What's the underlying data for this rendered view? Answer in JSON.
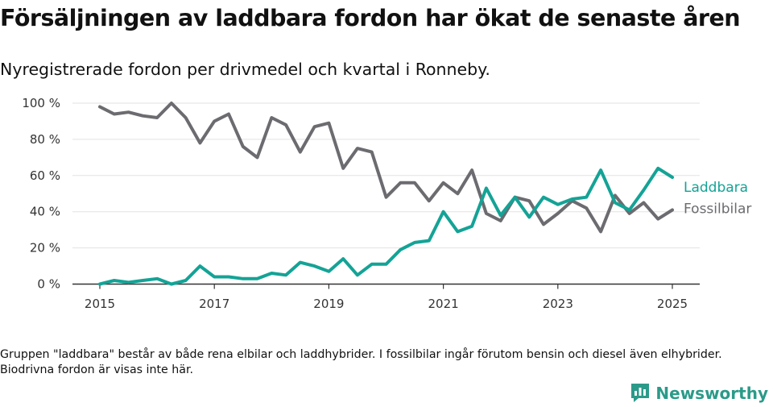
{
  "header": {
    "title": "Försäljningen av laddbara fordon har ökat de senaste åren",
    "subtitle": "Nyregistrerade fordon per drivmedel och kvartal i Ronneby."
  },
  "footnote": "Gruppen \"laddbara\" består av både rena elbilar och laddhybrider. I fossilbilar ingår förutom bensin och diesel även elhybrider. Biodrivna fordon är visas inte här.",
  "brand": {
    "name": "Newsworthy",
    "icon": "newsworthy-logo-icon",
    "color": "#2b9a89"
  },
  "chart_data": {
    "type": "line",
    "x_unit": "year",
    "x": [
      2015.0,
      2015.25,
      2015.5,
      2015.75,
      2016.0,
      2016.25,
      2016.5,
      2016.75,
      2017.0,
      2017.25,
      2017.5,
      2017.75,
      2018.0,
      2018.25,
      2018.5,
      2018.75,
      2019.0,
      2019.25,
      2019.5,
      2019.75,
      2020.0,
      2020.25,
      2020.5,
      2020.75,
      2021.0,
      2021.25,
      2021.5,
      2021.75,
      2022.0,
      2022.25,
      2022.5,
      2022.75,
      2023.0,
      2023.25,
      2023.5,
      2023.75,
      2024.0,
      2024.25,
      2024.5,
      2024.75,
      2025.0
    ],
    "series": [
      {
        "name": "Fossilbilar",
        "color": "#6b6b70",
        "values": [
          98,
          94,
          95,
          93,
          92,
          100,
          92,
          78,
          90,
          94,
          76,
          70,
          92,
          88,
          73,
          87,
          89,
          64,
          75,
          73,
          48,
          56,
          56,
          46,
          56,
          50,
          63,
          39,
          35,
          48,
          46,
          33,
          39,
          46,
          42,
          29,
          49,
          39,
          45,
          36,
          41
        ]
      },
      {
        "name": "Laddbara",
        "color": "#14a396",
        "values": [
          0,
          2,
          1,
          2,
          3,
          0,
          2,
          10,
          4,
          4,
          3,
          3,
          6,
          5,
          12,
          10,
          7,
          14,
          5,
          11,
          11,
          19,
          23,
          24,
          40,
          29,
          32,
          53,
          38,
          48,
          37,
          48,
          44,
          47,
          48,
          63,
          45,
          41,
          52,
          64,
          59
        ]
      }
    ],
    "y_ticks": [
      0,
      20,
      40,
      60,
      80,
      100
    ],
    "y_tick_labels": [
      "0 %",
      "20 %",
      "40 %",
      "60 %",
      "80 %",
      "100 %"
    ],
    "x_ticks": [
      2015,
      2017,
      2019,
      2021,
      2023,
      2025
    ],
    "x_tick_labels": [
      "2015",
      "2017",
      "2019",
      "2021",
      "2023",
      "2025"
    ],
    "ylim": [
      0,
      100
    ],
    "xlim": [
      2014.6,
      2025.5
    ],
    "grid": true,
    "legend": "direct labels at line ends"
  }
}
